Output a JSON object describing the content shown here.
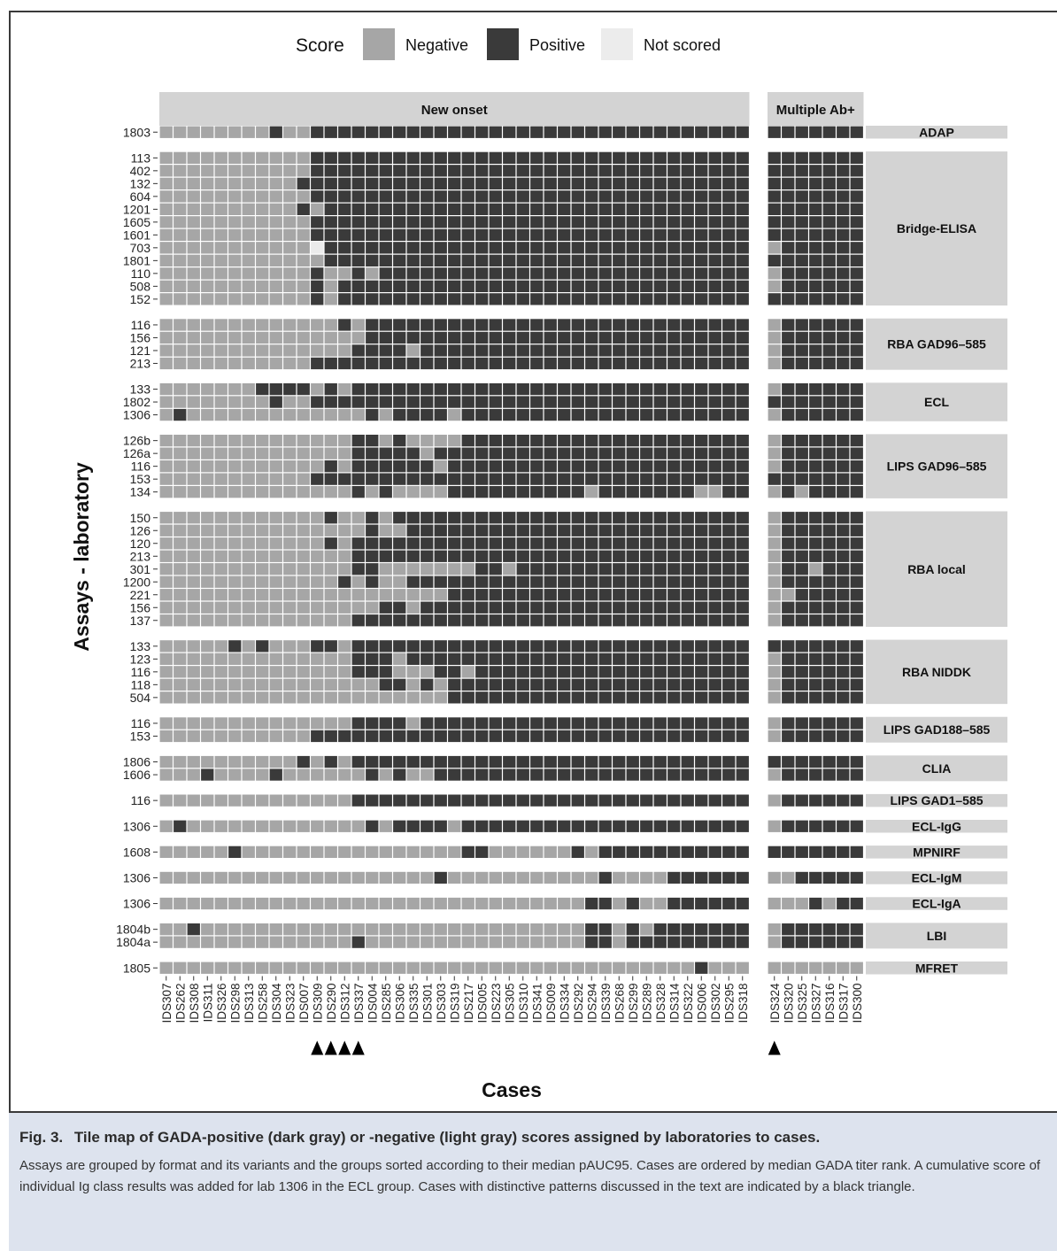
{
  "chart_data": {
    "type": "heatmap",
    "ylabel": "Assays - laboratory",
    "xlabel": "Cases",
    "legend": {
      "title": "Score",
      "placement": "top",
      "items": [
        {
          "name": "Negative",
          "color": "#a6a6a6"
        },
        {
          "name": "Positive",
          "color": "#3a3a3a"
        },
        {
          "name": "Not scored",
          "color": "#ececec"
        }
      ]
    },
    "facets": [
      {
        "name": "New onset",
        "cases": [
          "IDS307",
          "IDS262",
          "IDS308",
          "IDS311",
          "IDS326",
          "IDS298",
          "IDS313",
          "IDS258",
          "IDS304",
          "IDS323",
          "IDS007",
          "IDS309",
          "IDS290",
          "IDS312",
          "IDS337",
          "IDS004",
          "IDS285",
          "IDS306",
          "IDS335",
          "IDS301",
          "IDS303",
          "IDS319",
          "IDS217",
          "IDS005",
          "IDS223",
          "IDS305",
          "IDS310",
          "IDS341",
          "IDS009",
          "IDS334",
          "IDS292",
          "IDS294",
          "IDS339",
          "IDS268",
          "IDS299",
          "IDS289",
          "IDS328",
          "IDS314",
          "IDS322",
          "IDS006",
          "IDS302",
          "IDS295",
          "IDS318"
        ],
        "marked_cases": [
          "IDS309",
          "IDS290",
          "IDS312",
          "IDS337"
        ]
      },
      {
        "name": "Multiple Ab+",
        "cases": [
          "IDS324",
          "IDS320",
          "IDS325",
          "IDS327",
          "IDS316",
          "IDS317",
          "IDS300"
        ],
        "marked_cases": [
          "IDS324"
        ]
      }
    ],
    "groups": [
      {
        "name": "ADAP",
        "rows": [
          {
            "lab": "1803",
            "a": "NNNNNNNNPNNPPPPPPPPPPPPPPPPPPPPPPPPPPPPPPPP",
            "b": "PPPPPPP"
          }
        ]
      },
      {
        "name": "Bridge-ELISA",
        "rows": [
          {
            "lab": "113",
            "a": "NNNNNNNNNNNPPPPPPPPPPPPPPPPPPPPPPPPPPPPPPPP",
            "b": "PPPPPPP"
          },
          {
            "lab": "402",
            "a": "NNNNNNNNNNNPPPPPPPPPPPPPPPPPPPPPPPPPPPPPPPP",
            "b": "PPPPPPP"
          },
          {
            "lab": "132",
            "a": "NNNNNNNNNNPPPPPPPPPPPPPPPPPPPPPPPPPPPPPPPPP",
            "b": "PPPPPPP"
          },
          {
            "lab": "604",
            "a": "NNNNNNNNNNNPPPPPPPPPPPPPPPPPPPPPPPPPPPPPPPP",
            "b": "PPPPPPP"
          },
          {
            "lab": "1201",
            "a": "NNNNNNNNNNPNPPPPPPPPPPPPPPPPPPPPPPPPPPPPPPP",
            "b": "PPPPPPP"
          },
          {
            "lab": "1605",
            "a": "NNNNNNNNNNNPPPPPPPPPPPPPPPPPPPPPPPPPPPPPPPP",
            "b": "PPPPPPP"
          },
          {
            "lab": "1601",
            "a": "NNNNNNNNNNNPPPPPPPPPPPPPPPPPPPPPPPPPPPPPPPP",
            "b": "PPPPPPP"
          },
          {
            "lab": "703",
            "a": "NNNNNNNNNNNXPPPPPPPPPPPPPPPPPPPPPPPPPPPPPPP",
            "b": "NPPPPPP"
          },
          {
            "lab": "1801",
            "a": "NNNNNNNNNNNNPPPPPPPPPPPPPPPPPPPPPPPPPPPPPPP",
            "b": "PPPPPPP"
          },
          {
            "lab": "110",
            "a": "NNNNNNNNNNNPNNPNPPPPPPPPPPPPPPPPPPPPPPPPPPP",
            "b": "NPPPPPP"
          },
          {
            "lab": "508",
            "a": "NNNNNNNNNNNPNPPPPPPPPPPPPPPPPPPPPPPPPPPPPPP",
            "b": "NPPPPPP"
          },
          {
            "lab": "152",
            "a": "NNNNNNNNNNNPNPPPPPPPPPPPPPPPPPPPPPPPPPPPPPP",
            "b": "PPPPPPP"
          }
        ]
      },
      {
        "name": "RBA GAD96–585",
        "rows": [
          {
            "lab": "116",
            "a": "NNNNNNNNNNNNNPNPPPPPPPPPPPPPPPPPPPPPPPPPPPP",
            "b": "NPPPPPP"
          },
          {
            "lab": "156",
            "a": "NNNNNNNNNNNNNNNPPPPPPPPPPPPPPPPPPPPPPPPPPPP",
            "b": "NPPPPPP"
          },
          {
            "lab": "121",
            "a": "NNNNNNNNNNNNNNPPPPNPPPPPPPPPPPPPPPPPPPPPPPP",
            "b": "NPPPPPP"
          },
          {
            "lab": "213",
            "a": "NNNNNNNNNNNPPPPPPPPPPPPPPPPPPPPPPPPPPPPPPPP",
            "b": "NPPPPPP"
          }
        ]
      },
      {
        "name": "ECL",
        "rows": [
          {
            "lab": "133",
            "a": "NNNNNNNPPPPNPNPPPPPPPPPPPPPPPPPPPPPPPPPPPPP",
            "b": "NPPPPPP"
          },
          {
            "lab": "1802",
            "a": "NNNNNNNNPNNPPPPPPPPPPPPPPPPPPPPPPPPPPPPPPPP",
            "b": "PPPPPPP"
          },
          {
            "lab": "1306",
            "a": "NPNNNNNNNNNNNNNPNPPPPNPPPPPPPPPPPPPPPPPPPPP",
            "b": "NPPPPPP"
          }
        ]
      },
      {
        "name": "LIPS GAD96–585",
        "rows": [
          {
            "lab": "126b",
            "a": "NNNNNNNNNNNNNNPPNPNNNNPPPPPPPPPPPPPPPPPPPPP",
            "b": "NPPPPPP"
          },
          {
            "lab": "126a",
            "a": "NNNNNNNNNNNNNNPPPPPNPPPPPPPPPPPPPPPPPPPPPPP",
            "b": "NPPPPPP"
          },
          {
            "lab": "116",
            "a": "NNNNNNNNNNNNPNPPPPPPNPPPPPPPPPPPPPPPPPPPPPP",
            "b": "NPPPPPP"
          },
          {
            "lab": "153",
            "a": "NNNNNNNNNNNPPPPPPPPPPPPPPPPPPPPPPPPPPPPPPPP",
            "b": "PPPPPPP"
          },
          {
            "lab": "134",
            "a": "NNNNNNNNNNNNNNPNPNNNNPPPPPPPPPPNPPPPPPPNNPP",
            "b": "NPNPPPP"
          }
        ]
      },
      {
        "name": "RBA local",
        "rows": [
          {
            "lab": "150",
            "a": "NNNNNNNNNNNNPNNPNPPPPPPPPPPPPPPPPPPPPPPPPPP",
            "b": "NPPPPPP"
          },
          {
            "lab": "126",
            "a": "NNNNNNNNNNNNNNNPNNPPPPPPPPPPPPPPPPPPPPPPPPP",
            "b": "NPPPPPP"
          },
          {
            "lab": "120",
            "a": "NNNNNNNNNNNNPNPPPPPPPPPPPPPPPPPPPPPPPPPPPPP",
            "b": "NPPPPPP"
          },
          {
            "lab": "213",
            "a": "NNNNNNNNNNNNNNPPPPPPPPPPPPPPPPPPPPPPPPPPPPP",
            "b": "NPPPPPP"
          },
          {
            "lab": "301",
            "a": "NNNNNNNNNNNNNNPPNNNNNNNPPNPPPPPPPPPPPPPPPPP",
            "b": "NPPNPPP"
          },
          {
            "lab": "1200",
            "a": "NNNNNNNNNNNNNPNPNNPPPPPPPPPPPPPPPPPPPPPPPPP",
            "b": "NPPPPPP"
          },
          {
            "lab": "221",
            "a": "NNNNNNNNNNNNNNNNNNNNNPPPPPPPPPPPPPPPPPPPPPP",
            "b": "NNPPPPP"
          },
          {
            "lab": "156",
            "a": "NNNNNNNNNNNNNNNNPPNPPPPPPPPPPPPPPPPPPPPPPPP",
            "b": "NPPPPPP"
          },
          {
            "lab": "137",
            "a": "NNNNNNNNNNNNNNPPPPPPPPPPPPPPPPPPPPPPPPPPPPP",
            "b": "NPPPPPP"
          }
        ]
      },
      {
        "name": "RBA NIDDK",
        "rows": [
          {
            "lab": "133",
            "a": "NNNNNPNPNNNPPNPPPPPPPPPPPPPPPPPPPPPPPPPPPPP",
            "b": "PPPPPPP"
          },
          {
            "lab": "123",
            "a": "NNNNNNNNNNNNNNPPPNPPPPPPPPPPPPPPPPPPPPPPPPP",
            "b": "NPPPPPP"
          },
          {
            "lab": "116",
            "a": "NNNNNNNNNNNNNNPPPNNNPPNPPPPPPPPPPPPPPPPPPPP",
            "b": "NPPPPPP"
          },
          {
            "lab": "118",
            "a": "NNNNNNNNNNNNNNNNPPNPNPPPPPPPPPPPPPPPPPPPPPP",
            "b": "NPPPPPP"
          },
          {
            "lab": "504",
            "a": "NNNNNNNNNNNNNNNNNNNNNPPPPPPPPPPPPPPPPPPPPPP",
            "b": "NPPPPPP"
          }
        ]
      },
      {
        "name": "LIPS GAD188–585",
        "rows": [
          {
            "lab": "116",
            "a": "NNNNNNNNNNNNNNPPPPNPPPPPPPPPPPPPPPPPPPPPPPP",
            "b": "NPPPPPP"
          },
          {
            "lab": "153",
            "a": "NNNNNNNNNNNPPPPPPPPPPPPPPPPPPPPPPPPPPPPPPPP",
            "b": "NPPPPPP"
          }
        ]
      },
      {
        "name": "CLIA",
        "rows": [
          {
            "lab": "1806",
            "a": "NNNNNNNNNNPNPNPPPPPPPPPPPPPPPPPPPPPPPPPPPPP",
            "b": "PPPPPPP"
          },
          {
            "lab": "1606",
            "a": "NNNPNNNNPNNNNNNPNPNNPPPPPPPPPPPPPPPPPPPPPPP",
            "b": "NPPPPPP"
          }
        ]
      },
      {
        "name": "LIPS GAD1–585",
        "rows": [
          {
            "lab": "116",
            "a": "NNNNNNNNNNNNNNPPPPPPPPPPPPPPPPPPPPPPPPPPPPP",
            "b": "NPPPPPP"
          }
        ]
      },
      {
        "name": "ECL-IgG",
        "rows": [
          {
            "lab": "1306",
            "a": "NPNNNNNNNNNNNNNPNPPPPNPPPPPPPPPPPPPPPPPPPPP",
            "b": "NPPPPPP"
          }
        ]
      },
      {
        "name": "MPNIRF",
        "rows": [
          {
            "lab": "1608",
            "a": "NNNNNPNNNNNNNNNNNNNNNNPPNNNNNNPNPPPPPPPPPPP",
            "b": "PPPPPPP"
          }
        ]
      },
      {
        "name": "ECL-IgM",
        "rows": [
          {
            "lab": "1306",
            "a": "NNNNNNNNNNNNNNNNNNNNPNNNNNNNNNNNPNNNNPPPPPP",
            "b": "NNPPPPP"
          }
        ]
      },
      {
        "name": "ECL-IgA",
        "rows": [
          {
            "lab": "1306",
            "a": "NNNNNNNNNNNNNNNNNNNNNNNNNNNNNNNPPNPNNPPPPPP",
            "b": "NNNPNPP"
          }
        ]
      },
      {
        "name": "LBI",
        "rows": [
          {
            "lab": "1804b",
            "a": "NNPNNNNNNNNNNNNNNNNNNNNNNNNNNNNPPNPNPPPPPPP",
            "b": "NPPPPPP"
          },
          {
            "lab": "1804a",
            "a": "NNNNNNNNNNNNNNPNNNNNNNNNNNNNNNNPPNPPPPPPPPP",
            "b": "NPPPPPP"
          }
        ]
      },
      {
        "name": "MFRET",
        "rows": [
          {
            "lab": "1805",
            "a": "NNNNNNNNNNNNNNNNNNNNNNNNNNNNNNNNNNNNNNNPNNN",
            "b": "NNNNNNN"
          }
        ]
      }
    ]
  },
  "caption": {
    "label": "Fig. 3.",
    "title": "Tile map of GADA-positive (dark gray) or -negative (light gray) scores assigned by laboratories to cases.",
    "body": "Assays are grouped by format and its variants and the groups sorted according to their median pAUC95. Cases are ordered by median GADA titer rank. A cumulative score of individual Ig class results was added for lab 1306 in the ECL group. Cases with distinctive patterns discussed in the text are indicated by a black triangle."
  }
}
